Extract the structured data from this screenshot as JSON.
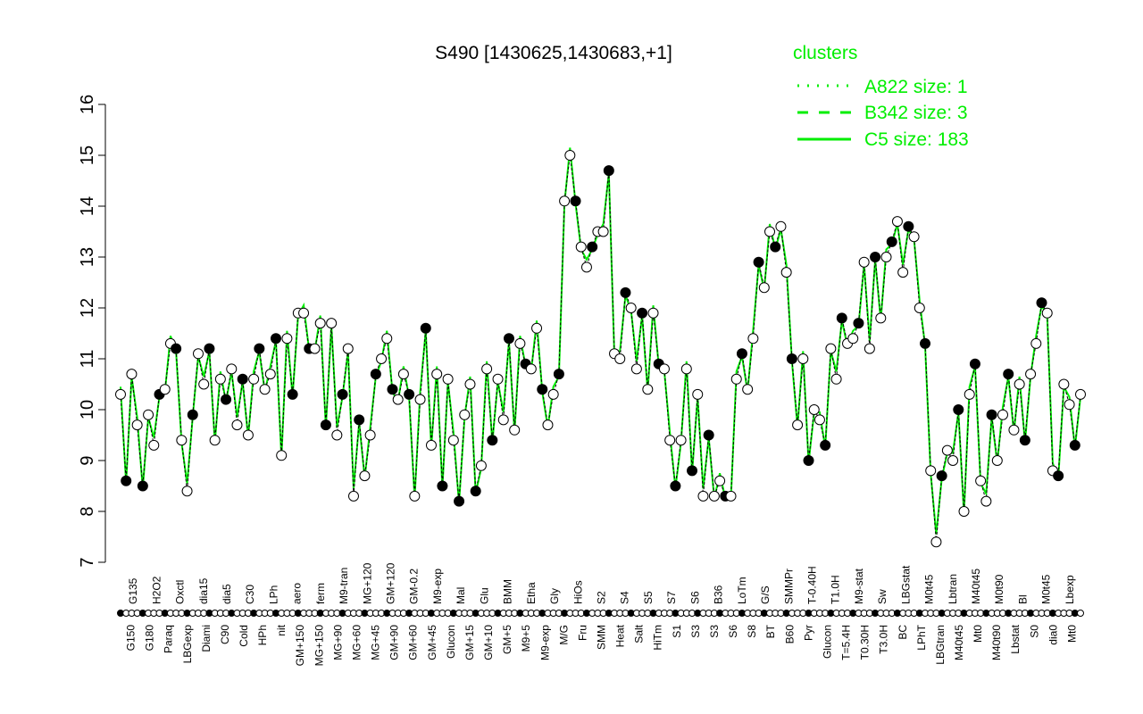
{
  "chart_data": {
    "type": "line",
    "title": "S490 [1430625,1430683,+1]",
    "xlabel": "",
    "ylabel": "",
    "ylim": [
      7,
      16
    ],
    "yticks": [
      7,
      8,
      9,
      10,
      11,
      12,
      13,
      14,
      15,
      16
    ],
    "grid": false,
    "legend": {
      "title": "clusters",
      "placement": "top-right",
      "entries": [
        {
          "label": "A822 size: 1",
          "style": "dotted"
        },
        {
          "label": "B342 size: 3",
          "style": "dashed"
        },
        {
          "label": "C5 size: 183",
          "style": "solid"
        }
      ]
    },
    "colors": {
      "line": "#00ee00",
      "point": "#000000",
      "legend_text": "#00ee00"
    },
    "series": [
      {
        "name": "C5 size: 183",
        "values": [
          10.3,
          8.6,
          10.7,
          9.7,
          8.5,
          9.9,
          9.3,
          10.3,
          10.4,
          11.3,
          11.2,
          9.4,
          8.4,
          9.9,
          11.1,
          10.5,
          11.2,
          9.4,
          10.6,
          10.2,
          10.8,
          9.7,
          10.6,
          9.5,
          10.6,
          11.2,
          10.4,
          10.7,
          11.4,
          9.1,
          11.4,
          10.3,
          11.9,
          11.9,
          11.2,
          11.2,
          11.7,
          9.7,
          11.7,
          9.5,
          10.3,
          11.2,
          8.3,
          9.8,
          8.7,
          9.5,
          10.7,
          11.0,
          11.4,
          10.4,
          10.2,
          10.7,
          10.3,
          8.3,
          10.2,
          11.6,
          9.3,
          10.7,
          8.5,
          10.6,
          9.4,
          8.2,
          9.9,
          10.5,
          8.4,
          8.9,
          10.8,
          9.4,
          10.6,
          9.8,
          11.4,
          9.6,
          11.3,
          10.9,
          10.8,
          11.6,
          10.4,
          9.7,
          10.3,
          10.7,
          14.1,
          15.0,
          14.1,
          13.2,
          12.8,
          13.2,
          13.5,
          13.5,
          14.7,
          11.1,
          11.0,
          12.3,
          12.0,
          10.8,
          11.9,
          10.4,
          11.9,
          10.9,
          10.8,
          9.4,
          8.5,
          9.4,
          10.8,
          8.8,
          10.3,
          8.3,
          9.5,
          8.3,
          8.6,
          8.3,
          8.3,
          10.6,
          11.1,
          10.4,
          11.4,
          12.9,
          12.4,
          13.5,
          13.2,
          13.6,
          12.7,
          11.0,
          9.7,
          11.0,
          9.0,
          10.0,
          9.8,
          9.3,
          11.2,
          10.6,
          11.8,
          11.3,
          11.4,
          11.7,
          12.9,
          11.2,
          13.0,
          11.8,
          13.0,
          13.3,
          13.7,
          12.7,
          13.6,
          13.4,
          12.0,
          11.3,
          8.8,
          7.4,
          8.7,
          9.2,
          9.0,
          10.0,
          8.0,
          10.3,
          10.9,
          8.6,
          8.2,
          9.9,
          9.0,
          9.9,
          10.7,
          9.6,
          10.5,
          9.4,
          10.7,
          11.3,
          12.1,
          11.9,
          8.8,
          8.7,
          10.5,
          10.1,
          9.3,
          10.3
        ]
      }
    ],
    "x_tick_labels_lower": [
      "G150",
      "G180",
      "Paraq",
      "LBGexp",
      "Diami",
      "C90",
      "Cold",
      "HPh",
      "nit",
      "GM+150",
      "MG+150",
      "MG+90",
      "MG+60",
      "MG+45",
      "GM+90",
      "GM+60",
      "GM+45",
      "Glucon",
      "GM+15",
      "GM+10",
      "GM+5",
      "M9+5",
      "M9-exp",
      "M/G",
      "Fru",
      "SMM",
      "Heat",
      "Salt",
      "HiTm",
      "S1",
      "S3",
      "S3",
      "S6",
      "S8",
      "BT",
      "B60",
      "Pyr",
      "Glucon",
      "T=5.4H",
      "T0.30H",
      "T3.0H",
      "BC",
      "LPhT",
      "LBGtran",
      "M40t45",
      "Mt0",
      "M40t90",
      "Lbstat",
      "S0",
      "dia0",
      "Mt0"
    ],
    "x_tick_labels_upper": [
      "G135",
      "H2O2",
      "Oxctl",
      "dia15",
      "dia5",
      "C30",
      "LPh",
      "aero",
      "ferm",
      "M9-tran",
      "MG+120",
      "GM+120",
      "GM-0.2",
      "M9-exp",
      "Mal",
      "Glu",
      "BMM",
      "Etha",
      "Gly",
      "HiOs",
      "S2",
      "S4",
      "S5",
      "S7",
      "S6",
      "B36",
      "LoTm",
      "G/S",
      "SMMPr",
      "T-0.40H",
      "T1.0H",
      "M9-stat",
      "Sw",
      "LBGstat",
      "M0t45",
      "Lbtran",
      "M40t45",
      "M0t90",
      "Bl",
      "M0t45",
      "Lbexp"
    ]
  }
}
